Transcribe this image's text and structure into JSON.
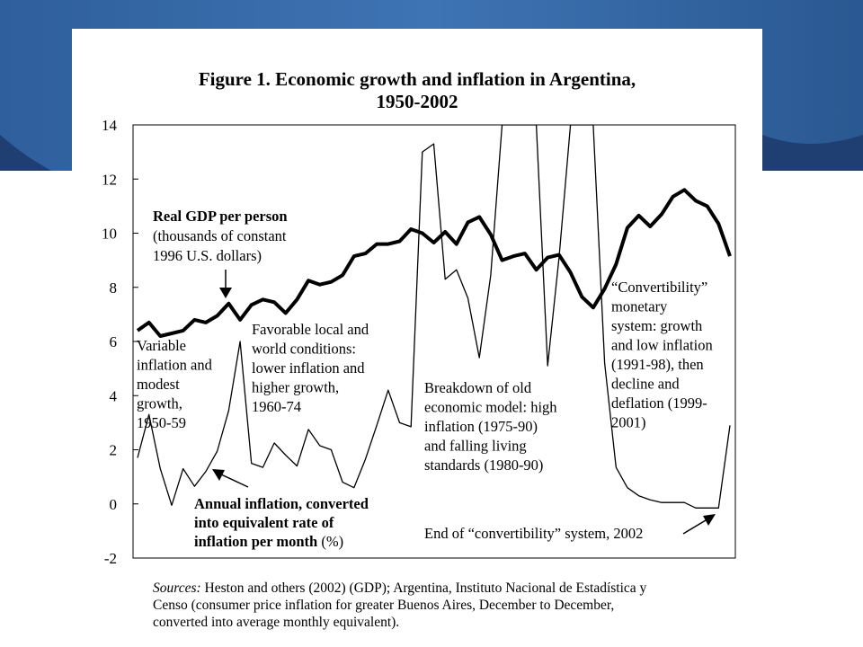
{
  "slide": {
    "background": "#ffffff",
    "accent": "#2b5a96",
    "accent_dark": "#1f3f73"
  },
  "figure": {
    "title_line1": "Figure 1. Economic growth and inflation in Argentina,",
    "title_line2": "1950-2002",
    "sources_label": "Sources:",
    "sources_line1": "Heston and others (2002) (GDP); Argentina, Instituto Nacional de Estadística y",
    "sources_line2": "Censo (consumer price inflation for greater Buenos Aires, December to December,",
    "sources_line3": "converted into average monthly equivalent)."
  },
  "chart_data": {
    "type": "line",
    "title": "Figure 1. Economic growth and inflation in Argentina, 1950-2002",
    "ylim": [
      -2,
      14
    ],
    "yticks": [
      "-2",
      "0",
      "2",
      "4",
      "6",
      "8",
      "10",
      "12",
      "14"
    ],
    "xlim": [
      1950,
      2002
    ],
    "grid": false,
    "series": [
      {
        "name": "Real GDP per person (thousands of constant 1996 U.S. dollars)",
        "style": "bold",
        "x": [
          1950,
          1951,
          1952,
          1953,
          1954,
          1955,
          1956,
          1957,
          1958,
          1959,
          1960,
          1961,
          1962,
          1963,
          1964,
          1965,
          1966,
          1967,
          1968,
          1969,
          1970,
          1971,
          1972,
          1973,
          1974,
          1975,
          1976,
          1977,
          1978,
          1979,
          1980,
          1981,
          1982,
          1983,
          1984,
          1985,
          1986,
          1987,
          1988,
          1989,
          1990,
          1991,
          1992,
          1993,
          1994,
          1995,
          1996,
          1997,
          1998,
          1999,
          2000,
          2001,
          2002
        ],
        "values": [
          6.4,
          6.7,
          6.2,
          6.3,
          6.4,
          6.8,
          6.7,
          6.95,
          7.4,
          6.8,
          7.35,
          7.55,
          7.45,
          7.05,
          7.55,
          8.25,
          8.1,
          8.2,
          8.45,
          9.15,
          9.25,
          9.6,
          9.6,
          9.7,
          10.15,
          10.0,
          9.65,
          10.05,
          9.6,
          10.4,
          10.6,
          9.95,
          9.0,
          9.15,
          9.25,
          8.65,
          9.1,
          9.2,
          8.55,
          7.65,
          7.25,
          7.95,
          8.85,
          10.2,
          10.65,
          10.25,
          10.7,
          11.35,
          11.6,
          11.2,
          11.0,
          10.35,
          9.15
        ]
      },
      {
        "name": "Annual inflation, converted into equivalent rate of inflation per month (%)",
        "style": "thin",
        "x": [
          1950,
          1951,
          1952,
          1953,
          1954,
          1955,
          1956,
          1957,
          1958,
          1959,
          1960,
          1961,
          1962,
          1963,
          1964,
          1965,
          1966,
          1967,
          1968,
          1969,
          1970,
          1971,
          1972,
          1973,
          1974,
          1975,
          1976,
          1977,
          1978,
          1979,
          1980,
          1981,
          1982,
          1983,
          1984,
          1985,
          1986,
          1987,
          1988,
          1989,
          1990,
          1991,
          1992,
          1993,
          1994,
          1995,
          1996,
          1997,
          1998,
          1999,
          2000,
          2001,
          2002
        ],
        "values": [
          1.7,
          3.3,
          1.3,
          -0.05,
          1.3,
          0.65,
          1.2,
          1.95,
          3.45,
          6.0,
          1.5,
          1.35,
          2.25,
          1.8,
          1.4,
          2.75,
          2.15,
          2.0,
          0.8,
          0.6,
          1.65,
          2.9,
          4.2,
          3.0,
          2.85,
          13.0,
          13.3,
          8.3,
          8.65,
          7.6,
          5.4,
          8.45,
          14.0,
          14.0,
          14.0,
          14.0,
          5.1,
          9.1,
          14.0,
          14.0,
          14.0,
          5.2,
          1.35,
          0.6,
          0.3,
          0.15,
          0.05,
          0.05,
          0.05,
          -0.15,
          -0.15,
          -0.15,
          2.9
        ]
      }
    ],
    "annotations": {
      "gdp_label_bold": "Real GDP per person",
      "gdp_label_line2": "(thousands of constant",
      "gdp_label_line3": "1996 U.S. dollars)",
      "infl_label_line1": "Annual inflation, converted",
      "infl_label_line2": "into equivalent rate of",
      "infl_label_line3_bold": "inflation per month",
      "infl_label_line3_rest": " (%)",
      "period1": [
        "Variable",
        "inflation and",
        "modest",
        "growth,",
        "1950-59"
      ],
      "period2": [
        "Favorable local and",
        "world conditions:",
        "lower inflation and",
        "higher growth,",
        "1960-74"
      ],
      "period3": [
        "Breakdown of old",
        "economic model: high",
        "inflation (1975-90)",
        "and falling living",
        "standards (1980-90)"
      ],
      "period4": [
        "“Convertibility”",
        "monetary",
        "system: growth",
        "and low inflation",
        "(1991-98), then",
        "decline and",
        "deflation (1999-",
        "2001)"
      ],
      "end_note": "End of “convertibility” system, 2002"
    }
  }
}
